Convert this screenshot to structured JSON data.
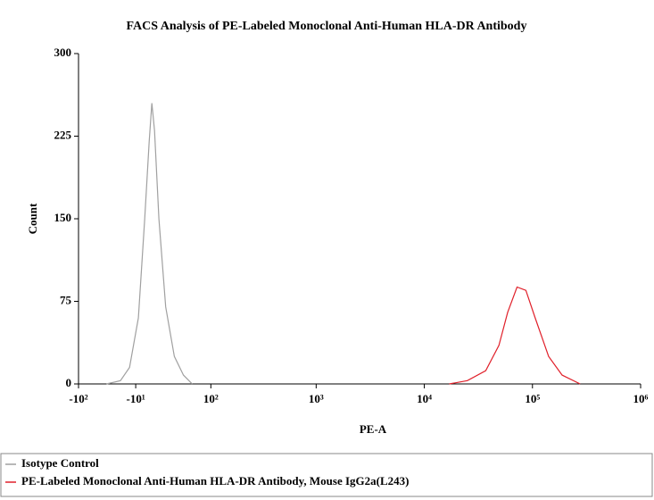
{
  "chart_data": {
    "type": "line",
    "title": "FACS Analysis of PE-Labeled Monoclonal Anti-Human HLA-DR Antibody",
    "x_label": "PE-A",
    "y_label": "Count",
    "xscale": "biexponential",
    "xlim": [
      -100,
      1000000
    ],
    "xticks": [
      {
        "value": -100,
        "label": "-10²"
      },
      {
        "value": -10,
        "label": "-10¹"
      },
      {
        "value": 100,
        "label": "10²"
      },
      {
        "value": 1000,
        "label": "10³"
      },
      {
        "value": 10000,
        "label": "10⁴"
      },
      {
        "value": 100000,
        "label": "10⁵"
      },
      {
        "value": 1000000,
        "label": "10⁶"
      }
    ],
    "ylim": [
      0,
      300
    ],
    "yticks": [
      0,
      75,
      150,
      225,
      300
    ],
    "series": [
      {
        "name": "Isotype Control",
        "color": "#a0a0a0",
        "x": [
          -47,
          -28,
          -17,
          -7,
          0,
          5,
          8,
          11,
          16,
          24,
          35,
          48,
          62
        ],
        "values": [
          0,
          3,
          15,
          60,
          150,
          220,
          255,
          230,
          150,
          70,
          25,
          8,
          0
        ]
      },
      {
        "name": "PE-Labeled Monoclonal Anti-Human HLA-DR Antibody, Mouse IgG2a(L243)",
        "color": "#e0202a",
        "x": [
          17000,
          25000,
          37000,
          49000,
          59000,
          72000,
          87000,
          106000,
          141000,
          188000,
          276000
        ],
        "values": [
          0,
          3,
          12,
          35,
          65,
          88,
          85,
          60,
          25,
          8,
          0
        ]
      }
    ]
  }
}
